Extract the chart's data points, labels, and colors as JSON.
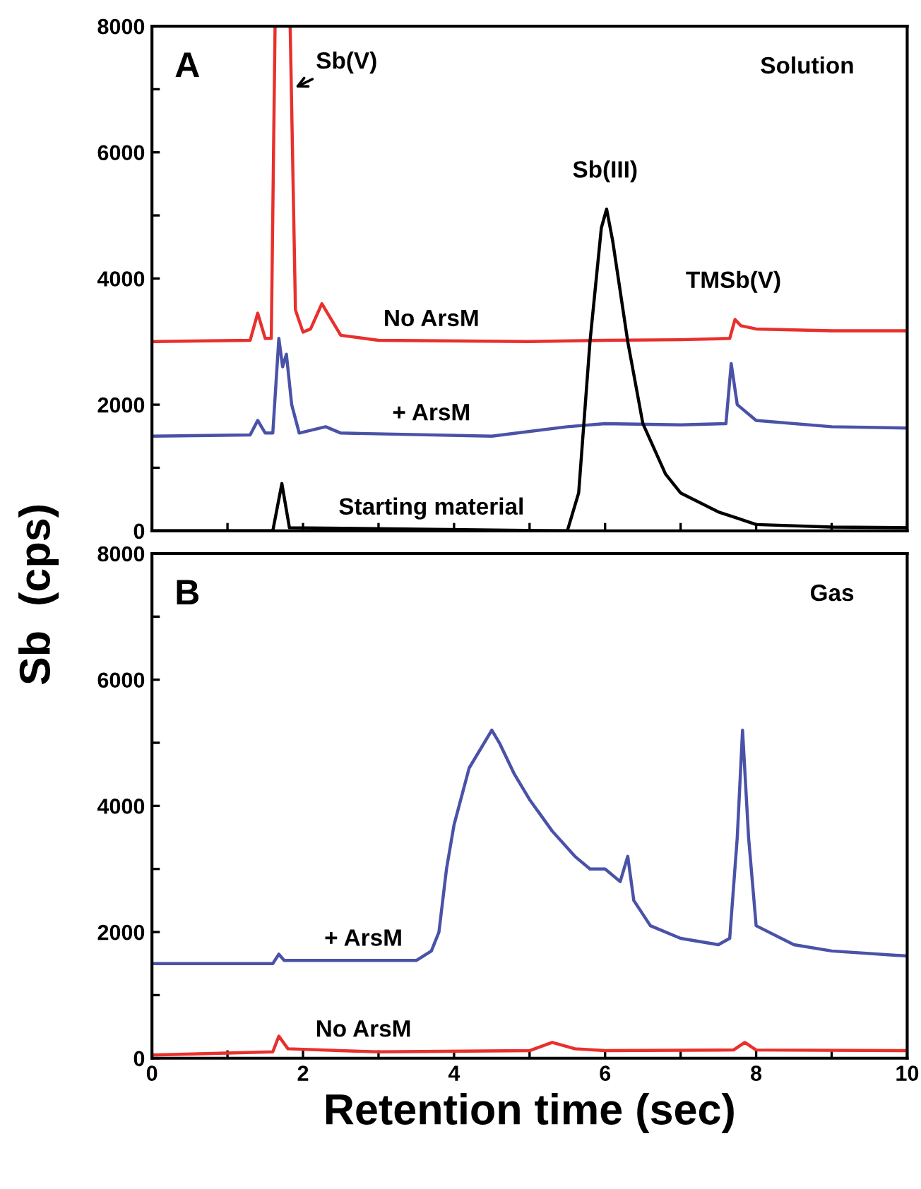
{
  "chart_data": [
    {
      "type": "line",
      "ylabel": "Sb  (cps)",
      "xlim": [
        0,
        10
      ],
      "ylim": [
        0,
        8000
      ],
      "tick_labels": "y",
      "grid": false,
      "legend": false,
      "xticks": [
        0,
        {
          "value": 1,
          "label": null
        },
        2,
        {
          "value": 3,
          "label": null
        },
        4,
        {
          "value": 5,
          "label": null
        },
        6,
        {
          "value": 7,
          "label": null
        },
        8,
        {
          "value": 9,
          "label": null
        },
        10
      ],
      "yticks": [
        0,
        {
          "value": 1000,
          "label": null
        },
        2000,
        {
          "value": 3000,
          "label": null
        },
        4000,
        {
          "value": 5000,
          "label": null
        },
        6000,
        {
          "value": 7000,
          "label": null
        },
        8000
      ],
      "annotations": [
        "A",
        "Solution",
        {
          "text": "Sb(V)",
          "x": 1.85,
          "y": 7000
        },
        {
          "text": "Sb(III)",
          "x": 6.0,
          "y": 5150
        },
        {
          "text": "TMSb(V)",
          "x": 7.7,
          "y": 3400
        }
      ],
      "series": [
        {
          "name": "No ArsM",
          "color": "#e8302c",
          "x": [
            0,
            1.3,
            1.4,
            1.5,
            1.58,
            1.63,
            1.73,
            1.83,
            1.9,
            2.0,
            2.1,
            2.25,
            2.35,
            2.5,
            3,
            5,
            6,
            7,
            7.65,
            7.72,
            7.8,
            8,
            9,
            10
          ],
          "values": [
            3000,
            3020,
            3450,
            3050,
            3050,
            8000,
            null,
            8000,
            3500,
            3150,
            3200,
            3600,
            3400,
            3100,
            3020,
            3000,
            3020,
            3030,
            3050,
            3350,
            3250,
            3200,
            3170,
            3170
          ]
        },
        {
          "name": "+ ArsM",
          "color": "#4a52a8",
          "x": [
            0,
            1.3,
            1.4,
            1.5,
            1.6,
            1.68,
            1.73,
            1.78,
            1.85,
            1.95,
            2.3,
            2.5,
            4.5,
            5.5,
            6,
            7,
            7.6,
            7.67,
            7.75,
            8,
            9,
            10
          ],
          "values": [
            1500,
            1520,
            1750,
            1550,
            1550,
            3050,
            2600,
            2800,
            2000,
            1550,
            1650,
            1550,
            1500,
            1650,
            1700,
            1680,
            1700,
            2650,
            2000,
            1750,
            1650,
            1630
          ]
        },
        {
          "name": "Starting material",
          "color": "#000000",
          "x": [
            0,
            1.6,
            1.72,
            1.82,
            5.5,
            5.65,
            5.8,
            5.95,
            6.02,
            6.1,
            6.3,
            6.5,
            6.8,
            7,
            7.5,
            7.75,
            8,
            9,
            10
          ],
          "values": [
            0,
            0,
            750,
            50,
            0,
            600,
            3000,
            4800,
            5100,
            4600,
            3000,
            1700,
            900,
            600,
            300,
            200,
            100,
            60,
            50
          ]
        }
      ]
    },
    {
      "type": "line",
      "xlabel": "Retention time (sec)",
      "xlim": [
        0,
        10
      ],
      "ylim": [
        0,
        8000
      ],
      "grid": false,
      "legend": false,
      "xticks": [
        0,
        {
          "value": 1,
          "label": null
        },
        2,
        {
          "value": 3,
          "label": null
        },
        4,
        {
          "value": 5,
          "label": null
        },
        6,
        {
          "value": 7,
          "label": null
        },
        8,
        {
          "value": 9,
          "label": null
        },
        10
      ],
      "yticks": [
        0,
        {
          "value": 1000,
          "label": null
        },
        2000,
        {
          "value": 3000,
          "label": null
        },
        4000,
        {
          "value": 5000,
          "label": null
        },
        6000,
        {
          "value": 7000,
          "label": null
        },
        8000
      ],
      "annotations": [
        "B",
        "Gas"
      ],
      "series": [
        {
          "name": "+ ArsM",
          "color": "#4a52a8",
          "x": [
            0,
            1.6,
            1.68,
            1.75,
            3.5,
            3.7,
            3.8,
            3.9,
            4.0,
            4.2,
            4.5,
            4.6,
            4.8,
            5.0,
            5.3,
            5.6,
            5.8,
            6.0,
            6.2,
            6.3,
            6.38,
            6.6,
            7.0,
            7.5,
            7.65,
            7.75,
            7.82,
            7.9,
            8.0,
            8.5,
            9,
            10
          ],
          "values": [
            1500,
            1500,
            1650,
            1550,
            1550,
            1700,
            2000,
            3000,
            3700,
            4600,
            5200,
            5000,
            4500,
            4100,
            3600,
            3200,
            3000,
            3000,
            2800,
            3200,
            2500,
            2100,
            1900,
            1800,
            1900,
            3500,
            5200,
            3500,
            2100,
            1800,
            1700,
            1620
          ]
        },
        {
          "name": "No ArsM",
          "color": "#e8302c",
          "x": [
            0,
            1.6,
            1.68,
            1.8,
            3,
            5,
            5.3,
            5.6,
            6,
            7.7,
            7.85,
            8,
            10
          ],
          "values": [
            50,
            100,
            350,
            150,
            100,
            120,
            250,
            150,
            120,
            130,
            250,
            130,
            120
          ]
        }
      ]
    }
  ]
}
